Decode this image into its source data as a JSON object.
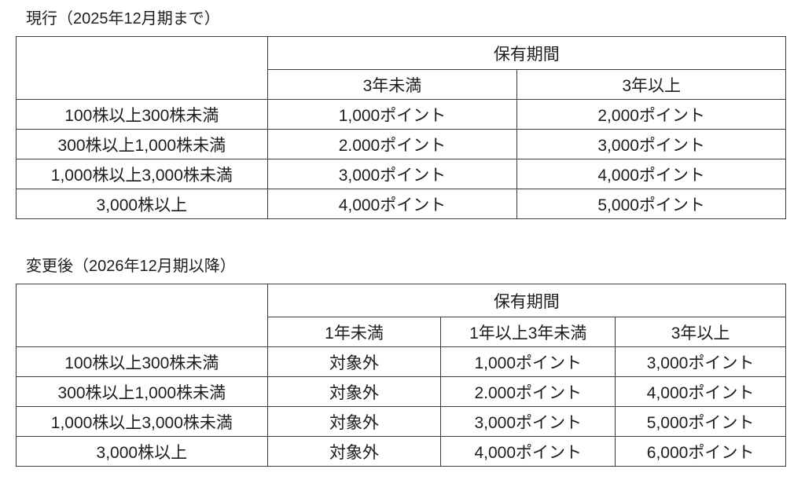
{
  "tables": [
    {
      "title": "現行（2025年12月期まで）",
      "header": {
        "period_label": "保有期間",
        "columns": [
          "3年未満",
          "3年以上"
        ]
      },
      "rows": [
        {
          "label": "100株以上300株未満",
          "values": [
            "1,000ポイント",
            "2,000ポイント"
          ]
        },
        {
          "label": "300株以上1,000株未満",
          "values": [
            "2.000ポイント",
            "3,000ポイント"
          ]
        },
        {
          "label": "1,000株以上3,000株未満",
          "values": [
            "3,000ポイント",
            "4,000ポイント"
          ]
        },
        {
          "label": "3,000株以上",
          "values": [
            "4,000ポイント",
            "5,000ポイント"
          ]
        }
      ]
    },
    {
      "title": "変更後（2026年12月期以降）",
      "header": {
        "period_label": "保有期間",
        "columns": [
          "1年未満",
          "1年以上3年未満",
          "3年以上"
        ]
      },
      "rows": [
        {
          "label": "100株以上300株未満",
          "values": [
            "対象外",
            "1,000ポイント",
            "3,000ポイント"
          ]
        },
        {
          "label": "300株以上1,000株未満",
          "values": [
            "対象外",
            "2.000ポイント",
            "4,000ポイント"
          ]
        },
        {
          "label": "1,000株以上3,000株未満",
          "values": [
            "対象外",
            "3,000ポイント",
            "5,000ポイント"
          ]
        },
        {
          "label": "3,000株以上",
          "values": [
            "対象外",
            "4,000ポイント",
            "6,000ポイント"
          ]
        }
      ]
    }
  ],
  "colors": {
    "background": "#ffffff",
    "text": "#1d1d1d",
    "border": "#3c3c3c"
  }
}
